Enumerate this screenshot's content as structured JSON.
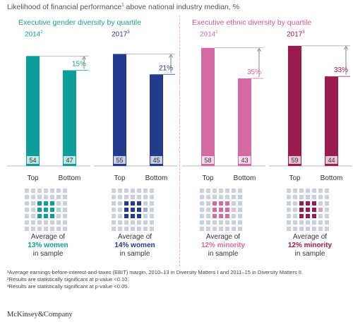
{
  "title": "Likelihood of financial performance",
  "title_sup": "1",
  "title_suffix": " above national industry median, %",
  "sections": [
    {
      "label": "Executive gender diversity by quartile",
      "color": "#1a9b9c"
    },
    {
      "label": "Executive ethnic diversity by quartile",
      "color": "#d0589a"
    }
  ],
  "chart_data": {
    "type": "bar",
    "categories": [
      "Top",
      "Bottom"
    ],
    "panels": [
      {
        "year": "2014",
        "year_sup": "2",
        "color": "#0f9d9c",
        "light": "#a6d6d6",
        "values": [
          54,
          47
        ],
        "diff": "15%",
        "avg_prefix": "Average of",
        "avg_highlight": "13% women",
        "avg_suffix": "in sample"
      },
      {
        "year": "2017",
        "year_sup": "3",
        "color": "#233b8c",
        "light": "#a3acc9",
        "values": [
          55,
          45
        ],
        "diff": "21%",
        "avg_prefix": "Average of",
        "avg_highlight": "14% women",
        "avg_suffix": "in sample"
      },
      {
        "year": "2014",
        "year_sup": "2",
        "color": "#d469a3",
        "light": "#ebbdd6",
        "values": [
          58,
          43
        ],
        "diff": "35%",
        "avg_prefix": "Average of",
        "avg_highlight": "12% minority",
        "avg_suffix": "in sample"
      },
      {
        "year": "2017",
        "year_sup": "3",
        "color": "#9b1b4f",
        "light": "#d3a8ba",
        "values": [
          59,
          44
        ],
        "diff": "33%",
        "avg_prefix": "Average of",
        "avg_highlight": "12% minority",
        "avg_suffix": "in sample"
      }
    ],
    "ylim": [
      0,
      60
    ]
  },
  "grid_color": "#c9d2dc",
  "footnotes": [
    "¹Average earnings-before-interest-and-taxes (EBIT) margin, 2010–13 in Diversity Matters I and 2011–15 in Diversity Matters II.",
    "²Results are statistically significant at p-value <0.10.",
    "³Results are statistically significant at p-value <0.05."
  ],
  "brand": "McKinsey&Company"
}
